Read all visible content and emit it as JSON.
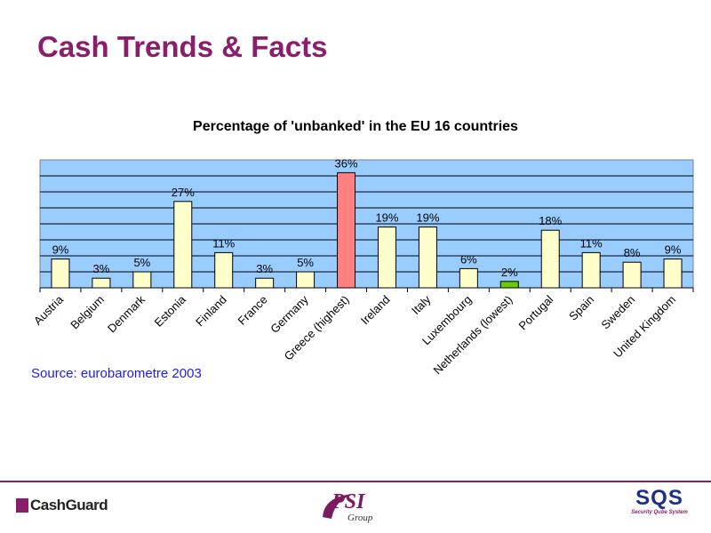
{
  "slide": {
    "title": "Cash Trends & Facts",
    "source": "Source: eurobarometre 2003"
  },
  "logos": {
    "left": "CashGuard",
    "center": "PSI",
    "center_sub": "Group",
    "right": "SQS",
    "right_sub": "Security Qube System"
  },
  "colors": {
    "title": "#8b1e6b",
    "plot_background": "#99ccff",
    "bar_default": "#ffffcc",
    "bar_highest": "#ff8080",
    "bar_lowest": "#66cc00",
    "source_text": "#1a1aff"
  },
  "chart_data": {
    "type": "bar",
    "title": "Percentage of 'unbanked' in the EU 16 countries",
    "xlabel": "",
    "ylabel": "",
    "ylim": [
      0,
      40
    ],
    "grid": true,
    "legend": "none",
    "categories": [
      "Austria",
      "Belgium",
      "Denmark",
      "Estonia",
      "Finland",
      "France",
      "Germany",
      "Greece (highest)",
      "Ireland",
      "Italy",
      "Luxembourg",
      "Netherlands (lowest)",
      "Portugal",
      "Spain",
      "Sweden",
      "United Kingdom"
    ],
    "values": [
      9,
      3,
      5,
      27,
      11,
      3,
      5,
      36,
      19,
      19,
      6,
      2,
      18,
      11,
      8,
      9
    ],
    "data_labels": [
      "9%",
      "3%",
      "5%",
      "27%",
      "11%",
      "3%",
      "5%",
      "36%",
      "19%",
      "19%",
      "6%",
      "2%",
      "18%",
      "11%",
      "8%",
      "9%"
    ],
    "highlight": {
      "Greece (highest)": "highest",
      "Netherlands (lowest)": "lowest"
    }
  }
}
